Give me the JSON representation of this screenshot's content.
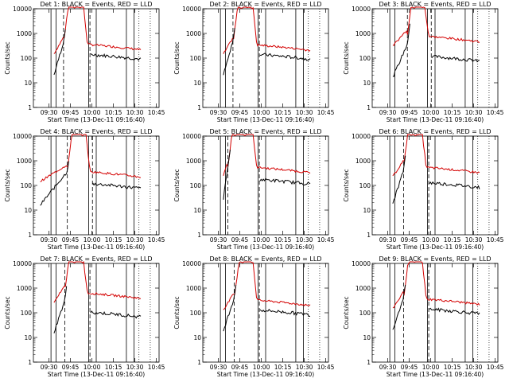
{
  "chart_data": [
    {
      "type": "line",
      "title": "Det 1: BLACK = Events, RED = LLD",
      "xlabel": "Start Time (13-Dec-11 09:16:40)",
      "ylabel": "Counts/sec",
      "ylim": [
        1,
        10000
      ],
      "yticks": [
        "1",
        "10",
        "100",
        "1000",
        "10000"
      ],
      "xticks": [
        "09:30",
        "09:45",
        "10:00",
        "10:15",
        "10:30",
        "10:45"
      ],
      "series": [
        {
          "name": "Events",
          "color": "#000000"
        },
        {
          "name": "LLD",
          "color": "#d40000"
        }
      ]
    },
    {
      "type": "line",
      "title": "Det 2: BLACK = Events, RED = LLD",
      "xlabel": "Start Time (13-Dec-11 09:16:40)",
      "ylabel": "Counts/sec",
      "ylim": [
        1,
        10000
      ],
      "yticks": [
        "1",
        "10",
        "100",
        "1000",
        "10000"
      ],
      "xticks": [
        "09:30",
        "09:45",
        "10:00",
        "10:15",
        "10:30",
        "10:45"
      ],
      "series": [
        {
          "name": "Events",
          "color": "#000000"
        },
        {
          "name": "LLD",
          "color": "#d40000"
        }
      ]
    },
    {
      "type": "line",
      "title": "Det 3: BLACK = Events, RED = LLD",
      "xlabel": "Start Time (13-Dec-11 09:16:40)",
      "ylabel": "Counts/sec",
      "ylim": [
        1,
        10000
      ],
      "yticks": [
        "1",
        "10",
        "100",
        "1000",
        "10000"
      ],
      "xticks": [
        "09:30",
        "09:45",
        "10:00",
        "10:15",
        "10:30",
        "10:45"
      ],
      "series": [
        {
          "name": "Events",
          "color": "#000000"
        },
        {
          "name": "LLD",
          "color": "#d40000"
        }
      ]
    },
    {
      "type": "line",
      "title": "Det 4: BLACK = Events, RED = LLD",
      "xlabel": "Start Time (13-Dec-11 09:16:40)",
      "ylabel": "Counts/sec",
      "ylim": [
        1,
        10000
      ],
      "yticks": [
        "1",
        "10",
        "100",
        "1000",
        "10000"
      ],
      "xticks": [
        "09:30",
        "09:45",
        "10:00",
        "10:15",
        "10:30",
        "10:45"
      ],
      "series": [
        {
          "name": "Events",
          "color": "#000000"
        },
        {
          "name": "LLD",
          "color": "#d40000"
        }
      ]
    },
    {
      "type": "line",
      "title": "Det 5: BLACK = Events, RED = LLD",
      "xlabel": "Start Time (13-Dec-11 09:16:40)",
      "ylabel": "Counts/sec",
      "ylim": [
        1,
        10000
      ],
      "yticks": [
        "1",
        "10",
        "100",
        "1000",
        "10000"
      ],
      "xticks": [
        "09:30",
        "09:45",
        "10:00",
        "10:15",
        "10:30",
        "10:45"
      ],
      "series": [
        {
          "name": "Events",
          "color": "#000000"
        },
        {
          "name": "LLD",
          "color": "#d40000"
        }
      ]
    },
    {
      "type": "line",
      "title": "Det 6: BLACK = Events, RED = LLD",
      "xlabel": "Start Time (13-Dec-11 09:16:40)",
      "ylabel": "Counts/sec",
      "ylim": [
        1,
        10000
      ],
      "yticks": [
        "1",
        "10",
        "100",
        "1000",
        "10000"
      ],
      "xticks": [
        "09:30",
        "09:45",
        "10:00",
        "10:15",
        "10:30",
        "10:45"
      ],
      "series": [
        {
          "name": "Events",
          "color": "#000000"
        },
        {
          "name": "LLD",
          "color": "#d40000"
        }
      ]
    },
    {
      "type": "line",
      "title": "Det 7: BLACK = Events, RED = LLD",
      "xlabel": "Start Time (13-Dec-11 09:16:40)",
      "ylabel": "Counts/sec",
      "ylim": [
        1,
        10000
      ],
      "yticks": [
        "1",
        "10",
        "100",
        "1000",
        "10000"
      ],
      "xticks": [
        "09:30",
        "09:45",
        "10:00",
        "10:15",
        "10:30",
        "10:45"
      ],
      "series": [
        {
          "name": "Events",
          "color": "#000000"
        },
        {
          "name": "LLD",
          "color": "#d40000"
        }
      ]
    },
    {
      "type": "line",
      "title": "Det 8: BLACK = Events, RED = LLD",
      "xlabel": "Start Time (13-Dec-11 09:16:40)",
      "ylabel": "Counts/sec",
      "ylim": [
        1,
        10000
      ],
      "yticks": [
        "1",
        "10",
        "100",
        "1000",
        "10000"
      ],
      "xticks": [
        "09:30",
        "09:45",
        "10:00",
        "10:15",
        "10:30",
        "10:45"
      ],
      "series": [
        {
          "name": "Events",
          "color": "#000000"
        },
        {
          "name": "LLD",
          "color": "#d40000"
        }
      ]
    },
    {
      "type": "line",
      "title": "Det 9: BLACK = Events, RED = LLD",
      "xlabel": "Start Time (13-Dec-11 09:16:40)",
      "ylabel": "Counts/sec",
      "ylim": [
        1,
        10000
      ],
      "yticks": [
        "1",
        "10",
        "100",
        "1000",
        "10000"
      ],
      "xticks": [
        "09:30",
        "09:45",
        "10:00",
        "10:15",
        "10:30",
        "10:45"
      ],
      "series": [
        {
          "name": "Events",
          "color": "#000000"
        },
        {
          "name": "LLD",
          "color": "#d40000"
        }
      ]
    }
  ]
}
